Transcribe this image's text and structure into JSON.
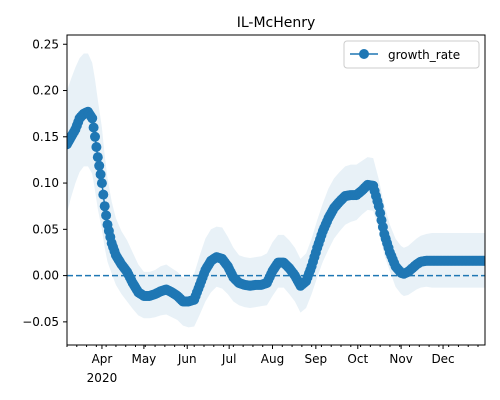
{
  "chart_data": {
    "type": "line",
    "title": "IL-McHenry",
    "xlabel": "",
    "ylabel": "",
    "xlim": [
      "2020-03-07",
      "2020-12-31"
    ],
    "ylim": [
      -0.075,
      0.26
    ],
    "yticks": [
      -0.05,
      0.0,
      0.05,
      0.1,
      0.15,
      0.2,
      0.25
    ],
    "ytick_labels": [
      "−0.05",
      "0.00",
      "0.05",
      "0.10",
      "0.15",
      "0.20",
      "0.25"
    ],
    "xticks": [
      {
        "date": "2020-04-01",
        "label": "Apr",
        "sublabel": "2020"
      },
      {
        "date": "2020-05-01",
        "label": "May"
      },
      {
        "date": "2020-06-01",
        "label": "Jun"
      },
      {
        "date": "2020-07-01",
        "label": "Jul"
      },
      {
        "date": "2020-08-01",
        "label": "Aug"
      },
      {
        "date": "2020-09-01",
        "label": "Sep"
      },
      {
        "date": "2020-10-01",
        "label": "Oct"
      },
      {
        "date": "2020-11-01",
        "label": "Nov"
      },
      {
        "date": "2020-12-01",
        "label": "Dec"
      }
    ],
    "grid": false,
    "legend": {
      "position": "top-right",
      "entries": [
        "growth_rate"
      ]
    },
    "reference_line": {
      "y": 0,
      "style": "dashed",
      "color": "#1f77b4"
    },
    "colors": {
      "line": "#1f77b4",
      "band": "#1f77b4"
    },
    "series": [
      {
        "name": "growth_rate",
        "x": [
          "2020-03-07",
          "2020-03-10",
          "2020-03-13",
          "2020-03-16",
          "2020-03-19",
          "2020-03-22",
          "2020-03-25",
          "2020-03-27",
          "2020-03-29",
          "2020-04-01",
          "2020-04-03",
          "2020-04-05",
          "2020-04-08",
          "2020-04-11",
          "2020-04-15",
          "2020-04-19",
          "2020-04-23",
          "2020-04-27",
          "2020-05-01",
          "2020-05-05",
          "2020-05-09",
          "2020-05-13",
          "2020-05-17",
          "2020-05-21",
          "2020-05-25",
          "2020-05-29",
          "2020-06-02",
          "2020-06-06",
          "2020-06-10",
          "2020-06-14",
          "2020-06-18",
          "2020-06-22",
          "2020-06-26",
          "2020-06-30",
          "2020-07-04",
          "2020-07-08",
          "2020-07-12",
          "2020-07-16",
          "2020-07-20",
          "2020-07-24",
          "2020-07-28",
          "2020-08-01",
          "2020-08-05",
          "2020-08-09",
          "2020-08-13",
          "2020-08-17",
          "2020-08-21",
          "2020-08-25",
          "2020-08-29",
          "2020-09-02",
          "2020-09-06",
          "2020-09-10",
          "2020-09-14",
          "2020-09-18",
          "2020-09-22",
          "2020-09-26",
          "2020-09-30",
          "2020-10-04",
          "2020-10-08",
          "2020-10-12",
          "2020-10-16",
          "2020-10-20",
          "2020-10-24",
          "2020-10-28",
          "2020-11-01",
          "2020-11-03",
          "2020-11-06",
          "2020-11-09",
          "2020-11-12",
          "2020-11-15",
          "2020-11-19",
          "2020-11-23",
          "2020-11-27",
          "2020-12-01",
          "2020-12-05",
          "2020-12-09",
          "2020-12-13",
          "2020-12-17",
          "2020-12-21",
          "2020-12-25",
          "2020-12-31"
        ],
        "y": [
          0.142,
          0.15,
          0.158,
          0.17,
          0.175,
          0.177,
          0.17,
          0.15,
          0.128,
          0.1,
          0.075,
          0.055,
          0.035,
          0.022,
          0.012,
          0.004,
          -0.008,
          -0.018,
          -0.022,
          -0.022,
          -0.02,
          -0.017,
          -0.015,
          -0.018,
          -0.022,
          -0.028,
          -0.028,
          -0.026,
          -0.01,
          0.006,
          0.016,
          0.02,
          0.018,
          0.01,
          -0.002,
          -0.008,
          -0.01,
          -0.011,
          -0.01,
          -0.01,
          -0.008,
          0.005,
          0.014,
          0.014,
          0.008,
          0.0,
          -0.011,
          -0.006,
          0.01,
          0.03,
          0.048,
          0.062,
          0.073,
          0.08,
          0.086,
          0.087,
          0.087,
          0.092,
          0.098,
          0.097,
          0.075,
          0.045,
          0.025,
          0.01,
          0.003,
          0.002,
          0.004,
          0.008,
          0.012,
          0.015,
          0.016,
          0.016,
          0.016,
          0.016,
          0.016,
          0.016,
          0.016,
          0.016,
          0.016,
          0.016,
          0.016
        ],
        "band_lower": [
          0.068,
          0.085,
          0.1,
          0.112,
          0.118,
          0.118,
          0.11,
          0.092,
          0.072,
          0.05,
          0.03,
          0.015,
          0.002,
          -0.01,
          -0.02,
          -0.028,
          -0.036,
          -0.043,
          -0.046,
          -0.046,
          -0.045,
          -0.043,
          -0.042,
          -0.045,
          -0.048,
          -0.054,
          -0.056,
          -0.055,
          -0.042,
          -0.028,
          -0.018,
          -0.012,
          -0.014,
          -0.02,
          -0.028,
          -0.032,
          -0.034,
          -0.035,
          -0.034,
          -0.033,
          -0.032,
          -0.022,
          -0.013,
          -0.013,
          -0.02,
          -0.028,
          -0.04,
          -0.035,
          -0.02,
          -0.002,
          0.015,
          0.028,
          0.04,
          0.048,
          0.055,
          0.058,
          0.06,
          0.066,
          0.071,
          0.07,
          0.05,
          0.022,
          0.005,
          -0.012,
          -0.02,
          -0.022,
          -0.021,
          -0.018,
          -0.015,
          -0.013,
          -0.012,
          -0.013,
          -0.013,
          -0.013,
          -0.013,
          -0.013,
          -0.013,
          -0.013,
          -0.013,
          -0.013,
          -0.013
        ],
        "band_upper": [
          0.2,
          0.213,
          0.225,
          0.235,
          0.24,
          0.24,
          0.23,
          0.212,
          0.19,
          0.16,
          0.13,
          0.105,
          0.08,
          0.062,
          0.048,
          0.038,
          0.025,
          0.012,
          0.004,
          0.004,
          0.006,
          0.01,
          0.012,
          0.008,
          0.004,
          -0.002,
          -0.002,
          0.002,
          0.022,
          0.04,
          0.05,
          0.053,
          0.052,
          0.042,
          0.03,
          0.022,
          0.02,
          0.019,
          0.02,
          0.021,
          0.024,
          0.036,
          0.044,
          0.044,
          0.038,
          0.03,
          0.018,
          0.024,
          0.04,
          0.06,
          0.078,
          0.094,
          0.105,
          0.112,
          0.118,
          0.12,
          0.12,
          0.124,
          0.128,
          0.127,
          0.104,
          0.076,
          0.055,
          0.04,
          0.032,
          0.03,
          0.032,
          0.036,
          0.04,
          0.043,
          0.045,
          0.046,
          0.046,
          0.046,
          0.046,
          0.046,
          0.046,
          0.046,
          0.046,
          0.046,
          0.046
        ]
      }
    ]
  }
}
